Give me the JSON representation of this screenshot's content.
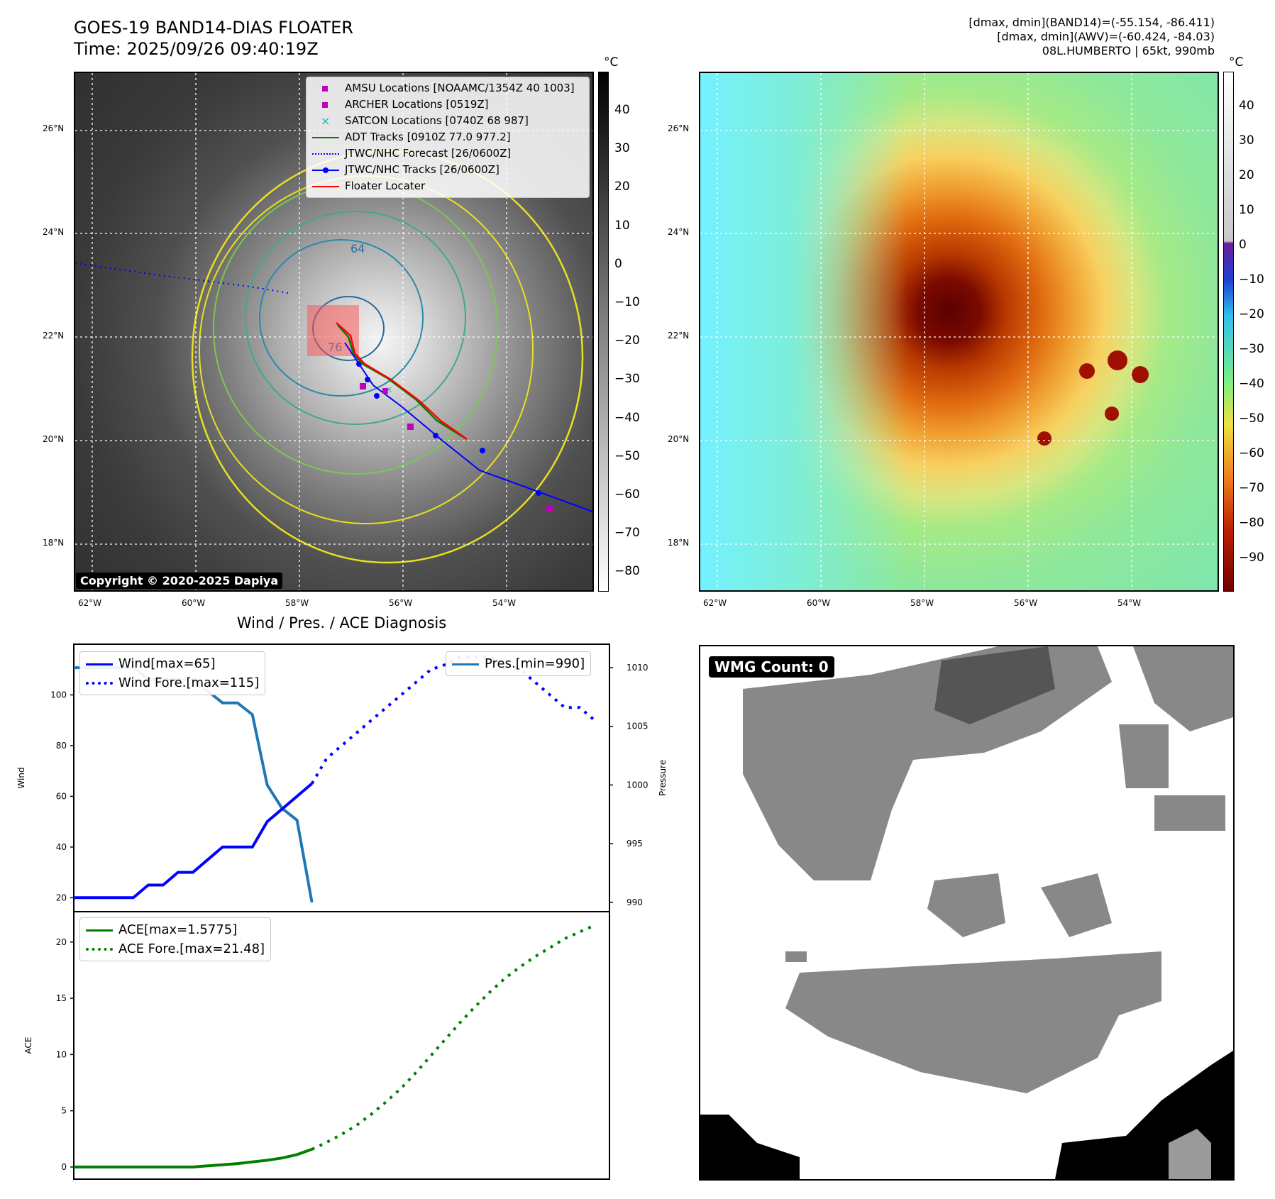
{
  "header": {
    "title_line1": "GOES-19 BAND14-DIAS FLOATER",
    "title_line2": "Time: 2025/09/26 09:40:19Z",
    "info_line1": "[dmax, dmin](BAND14)=(-55.154, -86.411)",
    "info_line2": "[dmax, dmin](AWV)=(-60.424, -84.03)",
    "info_line3": "08L.HUMBERTO | 65kt, 990mb"
  },
  "map": {
    "lat_labels": [
      "26°N",
      "24°N",
      "22°N",
      "20°N",
      "18°N"
    ],
    "lon_labels": [
      "62°W",
      "60°W",
      "58°W",
      "56°W",
      "54°W"
    ],
    "copyright": "Copyright © 2020-2025 Dapiya",
    "contour_labels": [
      "64",
      "76"
    ],
    "legend": [
      {
        "label": "AMSU Locations [NOAAMC/1354Z 40 1003]",
        "color": "#c000c0",
        "symbol": "square"
      },
      {
        "label": "ARCHER Locations [0519Z]",
        "color": "#c000c0",
        "symbol": "square"
      },
      {
        "label": "SATCON Locations [0740Z 68 987]",
        "color": "#20b0b0",
        "symbol": "x"
      },
      {
        "label": "ADT Tracks [0910Z 77.0 977.2]",
        "color": "#008000",
        "symbol": "line"
      },
      {
        "label": "JTWC/NHC Forecast [26/0600Z]",
        "color": "#0000ff",
        "symbol": "dotted"
      },
      {
        "label": "JTWC/NHC Tracks [26/0600Z]",
        "color": "#0000ff",
        "symbol": "line-dot"
      },
      {
        "label": "Floater Locater",
        "color": "#ff0000",
        "symbol": "line"
      }
    ]
  },
  "colorbar_ir": {
    "unit": "°C",
    "ticks": [
      "40",
      "30",
      "20",
      "10",
      "0",
      "−10",
      "−20",
      "−30",
      "−40",
      "−50",
      "−60",
      "−70",
      "−80"
    ]
  },
  "colorbar_awv": {
    "unit": "°C",
    "ticks": [
      "40",
      "30",
      "20",
      "10",
      "0",
      "−10",
      "−20",
      "−30",
      "−40",
      "−50",
      "−60",
      "−70",
      "−80",
      "−90"
    ]
  },
  "wmg": {
    "badge": "WMG Count: 0"
  },
  "chart_data": [
    {
      "type": "line",
      "title": "Wind / Pres. / ACE Diagnosis",
      "ylabel": "Wind",
      "y2label": "Pressure",
      "ylim": [
        14.5,
        120
      ],
      "y2lim": [
        989.2,
        1012
      ],
      "yticks": [
        20,
        40,
        60,
        80,
        100
      ],
      "y2ticks": [
        990,
        995,
        1000,
        1005,
        1010
      ],
      "xlim": [
        0,
        36
      ],
      "series": [
        {
          "name": "Wind[max=65]",
          "color": "#0000ff",
          "style": "solid",
          "x": [
            0,
            1,
            2,
            3,
            4,
            5,
            6,
            7,
            8,
            9,
            10,
            11,
            12,
            13,
            14,
            15,
            16
          ],
          "values": [
            20,
            20,
            20,
            20,
            20,
            25,
            25,
            30,
            30,
            35,
            40,
            40,
            40,
            50,
            55,
            60,
            65
          ]
        },
        {
          "name": "Wind Fore.[max=115]",
          "color": "#0000ff",
          "style": "dotted",
          "x": [
            16,
            17,
            18,
            19,
            20,
            21,
            22,
            23,
            24,
            25,
            26,
            27,
            28,
            29,
            30,
            31,
            32,
            33,
            34,
            35
          ],
          "values": [
            65,
            75,
            80,
            85,
            90,
            95,
            100,
            105,
            110,
            112,
            115,
            115,
            115,
            112,
            110,
            105,
            100,
            95,
            95,
            90
          ]
        }
      ],
      "series_y2": [
        {
          "name": "Pres.[min=990]",
          "color": "#1f77b4",
          "style": "solid",
          "x": [
            0,
            1,
            2,
            3,
            4,
            5,
            6,
            7,
            8,
            9,
            10,
            11,
            12,
            13,
            14,
            15,
            16
          ],
          "values": [
            1010,
            1010,
            1010,
            1010,
            1010,
            1009,
            1009,
            1009,
            1009,
            1008,
            1007,
            1007,
            1006,
            1000,
            998,
            997,
            990
          ]
        }
      ]
    },
    {
      "type": "line",
      "ylabel": "ACE",
      "ylim": [
        -1.08,
        22.7
      ],
      "yticks": [
        0,
        5,
        10,
        15,
        20
      ],
      "xlim": [
        0,
        36
      ],
      "series": [
        {
          "name": "ACE[max=1.5775]",
          "color": "#008000",
          "style": "solid",
          "x": [
            0,
            1,
            2,
            3,
            4,
            5,
            6,
            7,
            8,
            9,
            10,
            11,
            12,
            13,
            14,
            15,
            16
          ],
          "values": [
            0,
            0,
            0,
            0,
            0,
            0,
            0,
            0,
            0,
            0.1,
            0.2,
            0.3,
            0.45,
            0.6,
            0.8,
            1.1,
            1.5775
          ]
        },
        {
          "name": "ACE Fore.[max=21.48]",
          "color": "#008000",
          "style": "dotted",
          "x": [
            16,
            17,
            18,
            19,
            20,
            21,
            22,
            23,
            24,
            25,
            26,
            27,
            28,
            29,
            30,
            31,
            32,
            33,
            34,
            35
          ],
          "values": [
            1.5775,
            2.2,
            2.9,
            3.7,
            4.7,
            5.8,
            7.0,
            8.4,
            9.9,
            11.4,
            12.9,
            14.3,
            15.6,
            16.8,
            17.8,
            18.7,
            19.5,
            20.3,
            20.9,
            21.48
          ]
        }
      ]
    }
  ]
}
